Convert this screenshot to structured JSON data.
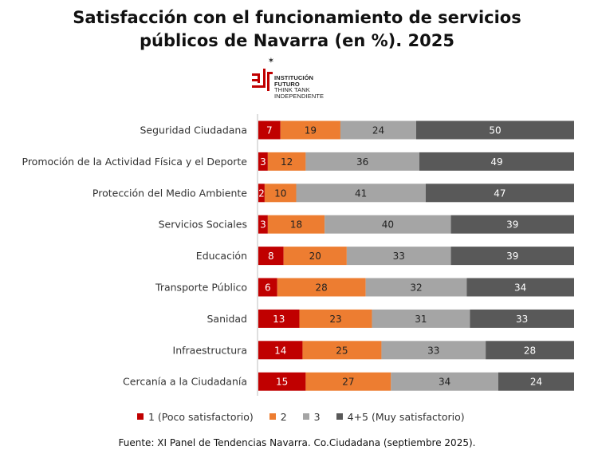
{
  "chart_data": {
    "type": "bar",
    "orientation": "horizontal-stacked",
    "title": "Satisfacción con el funcionamiento de servicios públicos de Navarra (en %). 2025",
    "title_lines": [
      "Satisfacción con el funcionamiento de servicios",
      "públicos de Navarra (en %). 2025"
    ],
    "categories": [
      "Seguridad Ciudadana",
      "Promoción de la Actividad Física y el Deporte",
      "Protección del Medio Ambiente",
      "Servicios Sociales",
      "Educación",
      "Transporte Público",
      "Sanidad",
      "Infraestructura",
      "Cercanía a la Ciudadanía"
    ],
    "series": [
      {
        "name": "1 (Poco satisfactorio)",
        "color": "#c00000",
        "values": [
          7,
          3,
          2,
          3,
          8,
          6,
          13,
          14,
          15
        ]
      },
      {
        "name": "2",
        "color": "#ed7d31",
        "values": [
          19,
          12,
          10,
          18,
          20,
          28,
          23,
          25,
          27
        ]
      },
      {
        "name": "3",
        "color": "#a5a5a5",
        "values": [
          24,
          36,
          41,
          40,
          33,
          32,
          31,
          33,
          34
        ]
      },
      {
        "name": "4+5 (Muy satisfactorio)",
        "color": "#595959",
        "values": [
          50,
          49,
          47,
          39,
          39,
          34,
          33,
          28,
          24
        ]
      }
    ],
    "legend_position": "bottom",
    "grid": false,
    "xlim": [
      0,
      100
    ]
  },
  "logo": {
    "star": "✶",
    "lines": [
      "INSTITUCIÓN",
      "FUTURO",
      "THINK TANK",
      "INDEPENDIENTE"
    ]
  },
  "source": "Fuente: XI Panel de Tendencias Navarra. Co.Ciudadana (septiembre 2025)."
}
